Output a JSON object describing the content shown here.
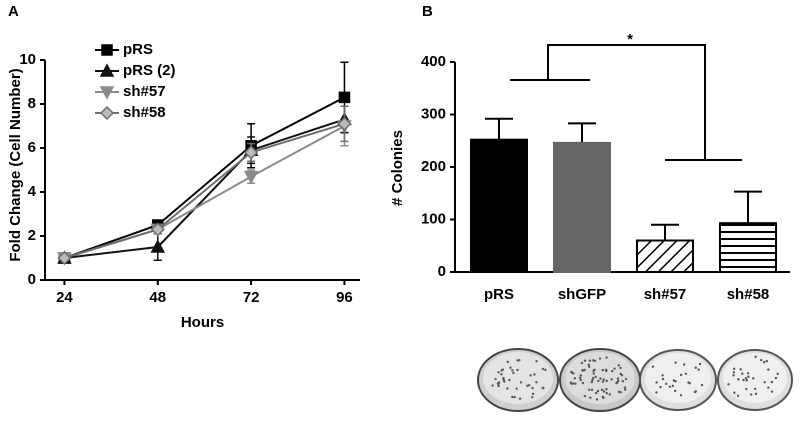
{
  "chart_data": [
    {
      "type": "line",
      "label": "A",
      "xlabel": "Hours",
      "ylabel": "Fold Change (Cell Number)",
      "x": [
        24,
        48,
        72,
        96
      ],
      "xlim": [
        19,
        100
      ],
      "xticks": [
        24,
        48,
        72,
        96
      ],
      "ylim": [
        0,
        10
      ],
      "yticks": [
        0,
        2,
        4,
        6,
        8,
        10
      ],
      "legend": "top-left",
      "series": [
        {
          "name": "pRS",
          "color": "#000000",
          "marker": "square",
          "values": [
            1,
            2.5,
            6.1,
            8.3
          ],
          "errors": [
            0.1,
            0.2,
            1.0,
            1.6
          ]
        },
        {
          "name": "pRS (2)",
          "color": "#111111",
          "marker": "triangle",
          "values": [
            1,
            1.5,
            5.9,
            7.3
          ],
          "errors": [
            0.1,
            0.6,
            0.6,
            0.6
          ]
        },
        {
          "name": "sh#57",
          "color": "#8a8a8a",
          "marker": "triangle-down",
          "values": [
            1,
            2.3,
            4.7,
            7.0
          ],
          "errors": [
            0.1,
            0.2,
            0.3,
            0.9
          ]
        },
        {
          "name": "sh#58",
          "color": "#6e6e6e",
          "marker": "diamond",
          "values": [
            1,
            2.3,
            5.8,
            7.1
          ],
          "errors": [
            0.1,
            0.2,
            0.4,
            0.8
          ]
        }
      ]
    },
    {
      "type": "bar",
      "label": "B",
      "ylabel": "# Colonies",
      "annotation": "*",
      "categories": [
        "pRS",
        "shGFP",
        "sh#57",
        "sh#58"
      ],
      "values": [
        252,
        246,
        60,
        93
      ],
      "errors": [
        40,
        37,
        30,
        60
      ],
      "colors": [
        "#000000",
        "#666666",
        "#000000",
        "#000000"
      ],
      "fills": [
        "solid",
        "solid",
        "diagonal",
        "horizontal"
      ],
      "ylim": [
        0,
        400
      ],
      "yticks": [
        0,
        100,
        200,
        300,
        400
      ]
    }
  ]
}
